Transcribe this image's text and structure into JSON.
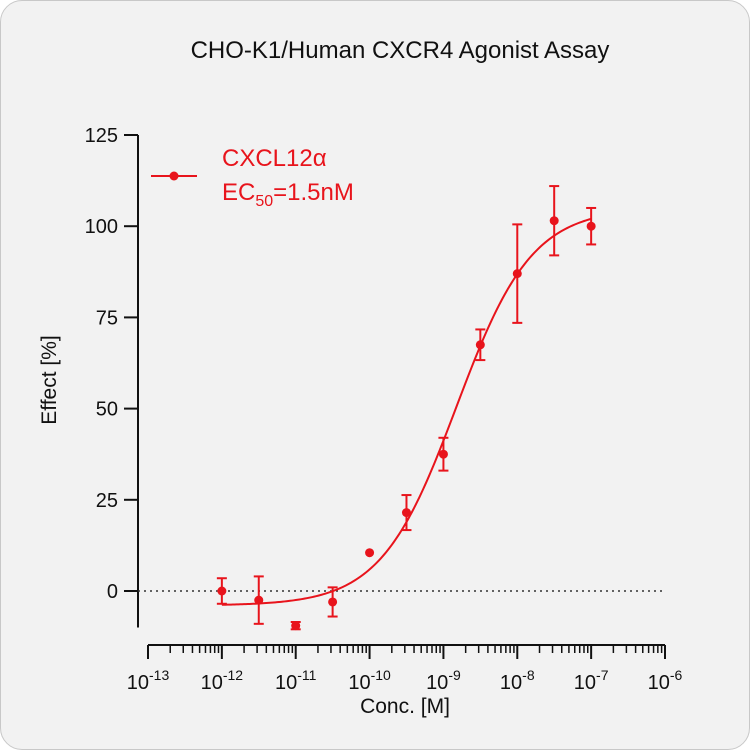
{
  "chart_data": {
    "type": "scatter",
    "title": "CHO-K1/Human CXCR4  Agonist Assay",
    "xlabel": "Conc. [M]",
    "ylabel": "Effect  [%]",
    "x_scale": "log",
    "xlim": [
      1e-13,
      1e-06
    ],
    "ylim": [
      -10,
      125
    ],
    "x_tick_labels": [
      {
        "base": "10",
        "exp": "-13"
      },
      {
        "base": "10",
        "exp": "-12"
      },
      {
        "base": "10",
        "exp": "-11"
      },
      {
        "base": "10",
        "exp": "-10"
      },
      {
        "base": "10",
        "exp": "-9"
      },
      {
        "base": "10",
        "exp": "-8"
      },
      {
        "base": "10",
        "exp": "-7"
      },
      {
        "base": "10",
        "exp": "-6"
      }
    ],
    "y_ticks": [
      0,
      25,
      50,
      75,
      100,
      125
    ],
    "y_tick_labels": [
      "0",
      "25",
      "50",
      "75",
      "100",
      "125"
    ],
    "grid": false,
    "reference_line": {
      "y": 0,
      "style": "dotted"
    },
    "legend": {
      "position": "top-left"
    },
    "series": [
      {
        "name": "CXCL12α",
        "annotation_prefix": "EC",
        "annotation_subscript": "50",
        "annotation_suffix": "=1.5nM",
        "color": "#e8141c",
        "x": [
          1e-12,
          3.16e-12,
          1e-11,
          3.16e-11,
          1e-10,
          3.16e-10,
          1e-09,
          3.16e-09,
          1e-08,
          3.16e-08,
          1e-07
        ],
        "y": [
          0,
          -2.5,
          -9.5,
          -3,
          10.5,
          21.5,
          37.5,
          67.5,
          87,
          101.5,
          100
        ],
        "error": [
          3.5,
          6.5,
          1,
          4,
          0,
          4.8,
          4.5,
          4.2,
          13.5,
          9.5,
          5
        ],
        "fit": {
          "model": "four-parameter logistic",
          "bottom": -4,
          "top": 105,
          "ec50": 1.5e-09,
          "hill": 0.85
        }
      }
    ]
  }
}
